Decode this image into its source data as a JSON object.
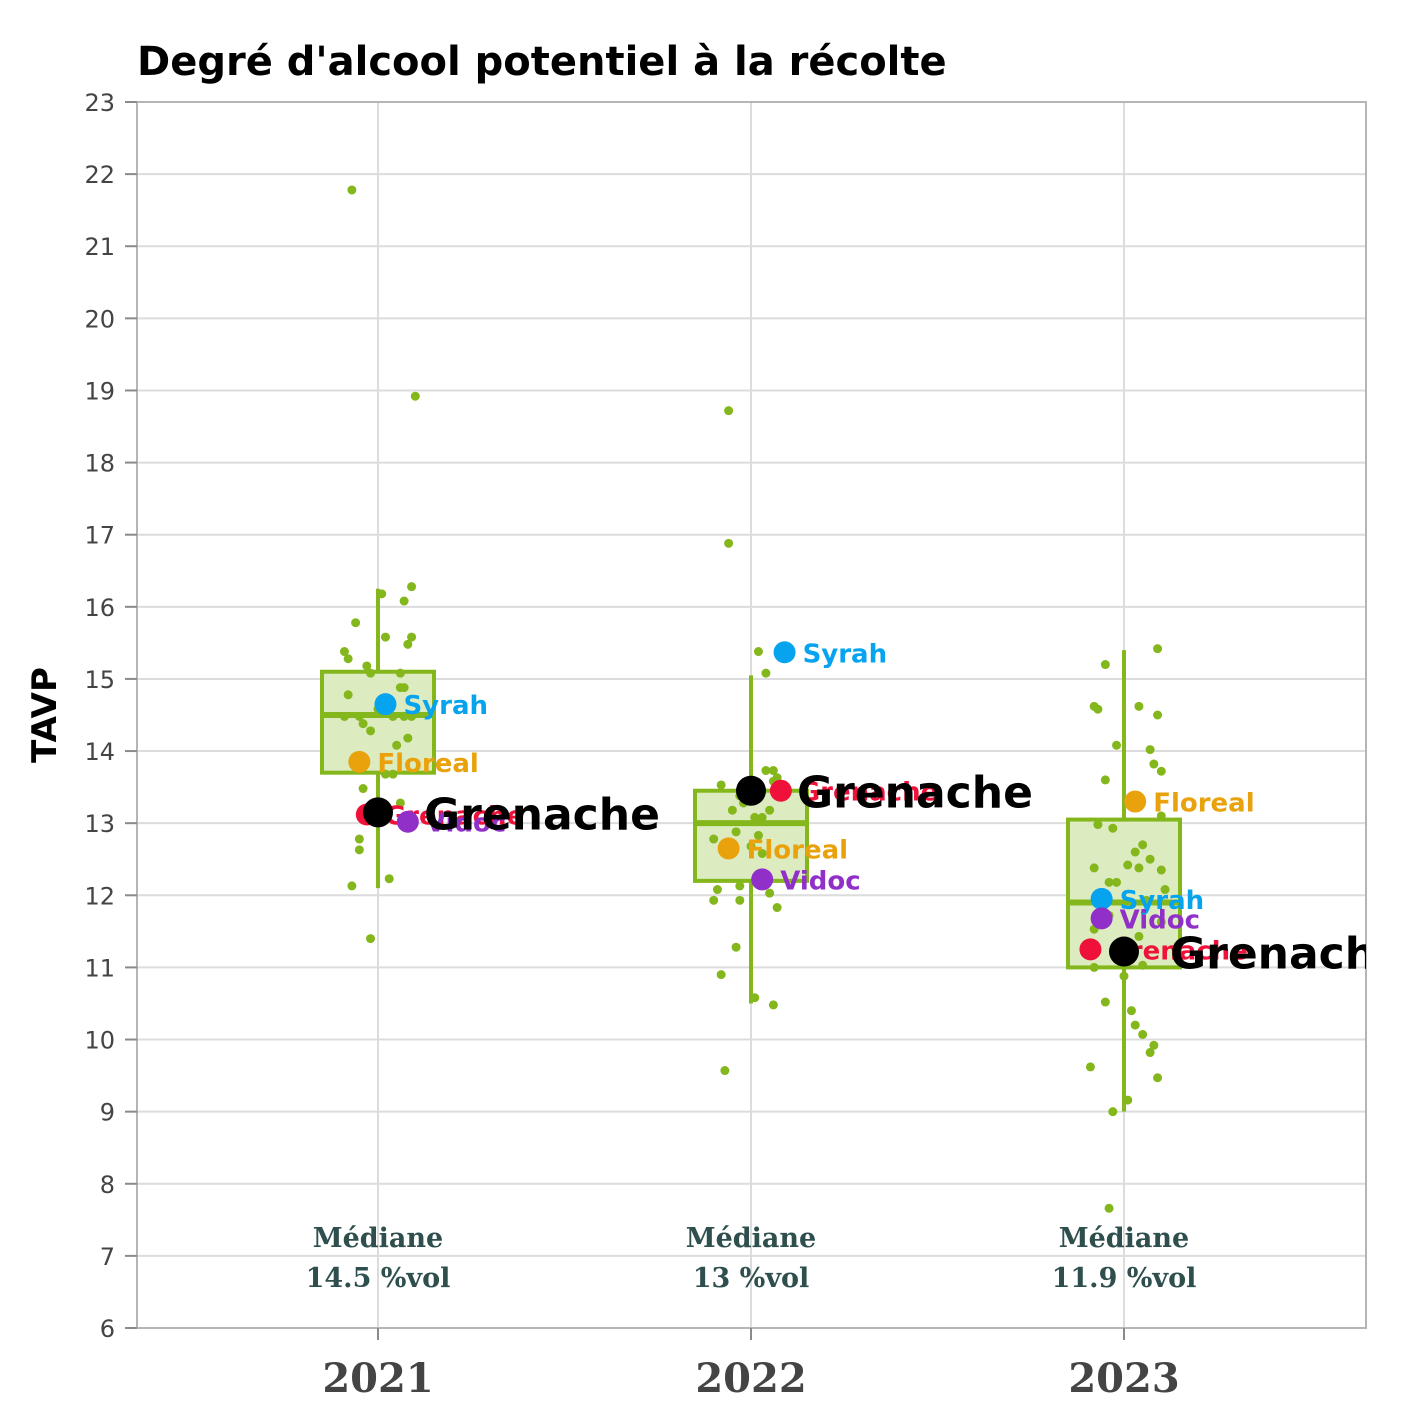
{
  "chart_data": {
    "type": "box",
    "title": "Degré d'alcool potentiel à la récolte",
    "ylabel": "TAVP",
    "xlabel": "",
    "ylim": [
      6,
      23
    ],
    "yticks": [
      6,
      7,
      8,
      9,
      10,
      11,
      12,
      13,
      14,
      15,
      16,
      17,
      18,
      19,
      20,
      21,
      22,
      23
    ],
    "grid": true,
    "colors": {
      "box": "#84b71b",
      "box_fill": "#dcebc0",
      "points": "#84b71b",
      "median_text": "#2f4f4f",
      "Syrah": "#06a3ef",
      "Floreal": "#eaa20c",
      "Grenache": "#f0113a",
      "Vidoc": "#9030c8",
      "highlight": "#000000"
    },
    "categories": [
      "2021",
      "2022",
      "2023"
    ],
    "boxes": [
      {
        "year": "2021",
        "whisker_low": 12.1,
        "q1": 13.7,
        "median": 14.5,
        "q3": 15.1,
        "whisker_high": 16.25,
        "median_line1": "Médiane",
        "median_line2": "14.5 %vol"
      },
      {
        "year": "2022",
        "whisker_low": 10.5,
        "q1": 12.2,
        "median": 13.0,
        "q3": 13.45,
        "whisker_high": 15.05,
        "median_line1": "Médiane",
        "median_line2": "13 %vol"
      },
      {
        "year": "2023",
        "whisker_low": 9.0,
        "q1": 11.0,
        "median": 11.9,
        "q3": 13.05,
        "whisker_high": 15.4,
        "median_line1": "Médiane",
        "median_line2": "11.9 %vol"
      }
    ],
    "points": [
      [
        [
          -0.07,
          21.78
        ],
        [
          0.1,
          18.92
        ],
        [
          -0.06,
          15.78
        ],
        [
          -0.08,
          15.28
        ],
        [
          -0.09,
          15.38
        ],
        [
          0.07,
          16.08
        ],
        [
          0.09,
          16.28
        ],
        [
          0.02,
          15.58
        ],
        [
          0.08,
          15.48
        ],
        [
          0.09,
          15.58
        ],
        [
          -0.02,
          15.08
        ],
        [
          0.06,
          15.08
        ],
        [
          -0.08,
          14.78
        ],
        [
          -0.09,
          14.48
        ],
        [
          -0.04,
          14.38
        ],
        [
          -0.05,
          14.48
        ],
        [
          0.0,
          14.58
        ],
        [
          0.04,
          14.48
        ],
        [
          0.06,
          14.88
        ],
        [
          0.07,
          14.48
        ],
        [
          0.09,
          14.48
        ],
        [
          -0.02,
          14.28
        ],
        [
          0.05,
          14.08
        ],
        [
          0.08,
          14.18
        ],
        [
          -0.06,
          13.78
        ],
        [
          0.02,
          13.68
        ],
        [
          0.04,
          13.68
        ],
        [
          -0.04,
          13.48
        ],
        [
          0.06,
          13.28
        ],
        [
          -0.05,
          12.78
        ],
        [
          -0.05,
          12.63
        ],
        [
          0.03,
          12.23
        ],
        [
          -0.07,
          12.13
        ],
        [
          -0.02,
          11.4
        ],
        [
          0.0,
          13.1
        ],
        [
          -0.03,
          15.18
        ],
        [
          0.01,
          16.18
        ],
        [
          0.07,
          14.88
        ]
      ],
      [
        [
          -0.06,
          18.72
        ],
        [
          -0.06,
          16.88
        ],
        [
          0.02,
          15.38
        ],
        [
          0.04,
          15.08
        ],
        [
          -0.08,
          13.53
        ],
        [
          -0.03,
          13.38
        ],
        [
          0.04,
          13.73
        ],
        [
          0.06,
          13.73
        ],
        [
          0.07,
          13.63
        ],
        [
          -0.05,
          13.18
        ],
        [
          -0.02,
          13.28
        ],
        [
          0.01,
          13.08
        ],
        [
          0.03,
          13.08
        ],
        [
          0.05,
          13.18
        ],
        [
          -0.1,
          12.78
        ],
        [
          -0.07,
          12.63
        ],
        [
          -0.04,
          12.88
        ],
        [
          0.0,
          12.68
        ],
        [
          0.03,
          12.58
        ],
        [
          -0.09,
          12.08
        ],
        [
          -0.03,
          12.13
        ],
        [
          0.02,
          12.18
        ],
        [
          0.05,
          12.03
        ],
        [
          -0.1,
          11.93
        ],
        [
          -0.03,
          11.93
        ],
        [
          0.07,
          11.83
        ],
        [
          -0.04,
          11.28
        ],
        [
          -0.08,
          10.9
        ],
        [
          0.01,
          10.58
        ],
        [
          0.06,
          10.48
        ],
        [
          -0.07,
          9.57
        ],
        [
          0.06,
          13.58
        ],
        [
          -0.01,
          13.42
        ],
        [
          0.02,
          12.83
        ]
      ],
      [
        [
          0.09,
          15.42
        ],
        [
          -0.05,
          15.2
        ],
        [
          -0.08,
          14.62
        ],
        [
          -0.07,
          14.58
        ],
        [
          0.04,
          14.62
        ],
        [
          0.09,
          14.5
        ],
        [
          -0.02,
          14.08
        ],
        [
          0.07,
          14.02
        ],
        [
          0.08,
          13.82
        ],
        [
          0.1,
          13.72
        ],
        [
          -0.05,
          13.6
        ],
        [
          0.02,
          13.3
        ],
        [
          0.1,
          13.1
        ],
        [
          -0.07,
          12.98
        ],
        [
          -0.03,
          12.93
        ],
        [
          0.05,
          12.7
        ],
        [
          0.03,
          12.6
        ],
        [
          0.07,
          12.5
        ],
        [
          -0.08,
          12.38
        ],
        [
          0.01,
          12.42
        ],
        [
          0.04,
          12.38
        ],
        [
          0.1,
          12.35
        ],
        [
          -0.04,
          12.18
        ],
        [
          -0.02,
          12.18
        ],
        [
          -0.06,
          12.03
        ],
        [
          0.11,
          12.08
        ],
        [
          0.06,
          11.93
        ],
        [
          -0.04,
          11.72
        ],
        [
          0.1,
          11.63
        ],
        [
          -0.08,
          11.53
        ],
        [
          0.04,
          11.43
        ],
        [
          -0.02,
          11.2
        ],
        [
          -0.08,
          11.0
        ],
        [
          0.05,
          11.03
        ],
        [
          0.0,
          10.88
        ],
        [
          -0.05,
          10.52
        ],
        [
          0.02,
          10.4
        ],
        [
          0.03,
          10.2
        ],
        [
          0.05,
          10.07
        ],
        [
          0.08,
          9.92
        ],
        [
          0.07,
          9.82
        ],
        [
          -0.09,
          9.62
        ],
        [
          0.09,
          9.47
        ],
        [
          0.01,
          9.16
        ],
        [
          -0.03,
          9.0
        ],
        [
          -0.04,
          7.66
        ]
      ]
    ],
    "varieties": [
      {
        "year": "2021",
        "name": "Syrah",
        "value": 14.65,
        "dx": 0.02,
        "label": "Syrah"
      },
      {
        "year": "2021",
        "name": "Floreal",
        "value": 13.85,
        "dx": -0.05,
        "label": "Floreal"
      },
      {
        "year": "2021",
        "name": "Grenache",
        "value": 13.12,
        "dx": -0.03,
        "label": "Grenache"
      },
      {
        "year": "2021",
        "name": "Vidoc",
        "value": 13.02,
        "dx": 0.08,
        "label": "Vidoc"
      },
      {
        "year": "2022",
        "name": "Syrah",
        "value": 15.37,
        "dx": 0.09,
        "label": "Syrah"
      },
      {
        "year": "2022",
        "name": "Grenache",
        "value": 13.45,
        "dx": 0.08,
        "label": "Grenache"
      },
      {
        "year": "2022",
        "name": "Floreal",
        "value": 12.65,
        "dx": -0.06,
        "label": "Floreal"
      },
      {
        "year": "2022",
        "name": "Vidoc",
        "value": 12.22,
        "dx": 0.03,
        "label": "Vidoc"
      },
      {
        "year": "2023",
        "name": "Floreal",
        "value": 13.3,
        "dx": 0.03,
        "label": "Floreal"
      },
      {
        "year": "2023",
        "name": "Syrah",
        "value": 11.95,
        "dx": -0.06,
        "label": "Syrah"
      },
      {
        "year": "2023",
        "name": "Vidoc",
        "value": 11.68,
        "dx": -0.06,
        "label": "Vidoc"
      },
      {
        "year": "2023",
        "name": "Grenache",
        "value": 11.25,
        "dx": -0.09,
        "label": "Grenache"
      }
    ],
    "highlights": [
      {
        "year": "2021",
        "name": "Grenache",
        "value": 13.15,
        "dx": 0.0,
        "label": "Grenache"
      },
      {
        "year": "2022",
        "name": "Grenache",
        "value": 13.45,
        "dx": 0.0,
        "label": "Grenache"
      },
      {
        "year": "2023",
        "name": "Grenache",
        "value": 11.22,
        "dx": 0.0,
        "label": "Grenache"
      }
    ]
  }
}
